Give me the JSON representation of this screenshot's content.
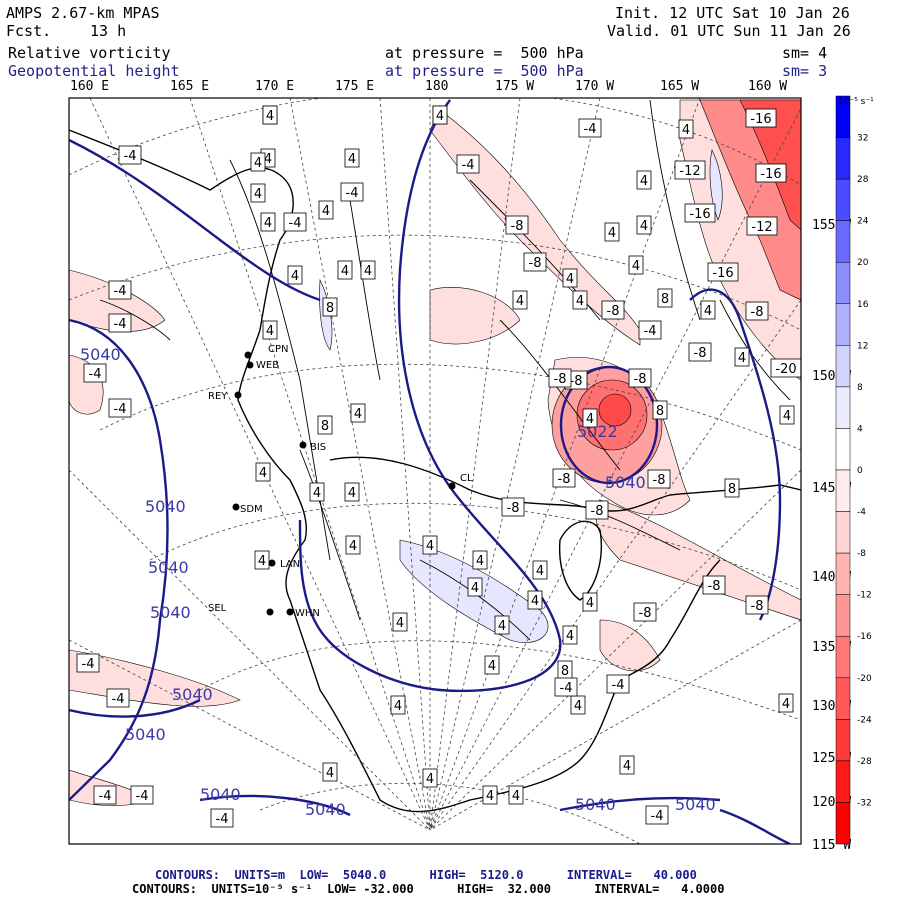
{
  "header": {
    "model": "AMPS 2.67-km MPAS",
    "fcst_label": "Fcst.",
    "fcst_value": "13 h",
    "init": "Init. 12 UTC Sat 10 Jan 26",
    "valid": "Valid. 01 UTC Sun 11 Jan 26",
    "field1": "Relative vorticity",
    "field2": "Geopotential height",
    "pressure1": "at pressure =  500 hPa",
    "pressure2": "at pressure =  500 hPa",
    "sm1": "sm= 4",
    "sm2": "sm= 3"
  },
  "longitudes": [
    "160 E",
    "165 E",
    "170 E",
    "175 E",
    "180",
    "175 W",
    "170 W",
    "165 W",
    "160 W"
  ],
  "latitudes": [
    "155",
    "150",
    "145",
    "140",
    "135",
    "130",
    "125",
    "120",
    "115"
  ],
  "colorbar": {
    "unit": "10⁻⁵ s⁻¹",
    "labels": [
      "32",
      "28",
      "24",
      "20",
      "16",
      "12",
      "8",
      "4",
      "0",
      "-4",
      "-8",
      "-12",
      "-16",
      "-20",
      "-24",
      "-28",
      "-32"
    ],
    "colors": [
      "#0000ff",
      "#2a2aff",
      "#4b4bff",
      "#6a6aff",
      "#8c8cff",
      "#b0b0ff",
      "#d2d2ff",
      "#ececff",
      "#ffffff",
      "#ffecec",
      "#ffd4d4",
      "#ffb4b4",
      "#ff9696",
      "#ff7777",
      "#ff5858",
      "#ff3a3a",
      "#ff1a1a",
      "#ff0000"
    ]
  },
  "stations": [
    "CPN",
    "WEB",
    "REY",
    "BIS",
    "CL",
    "SDM",
    "LAN",
    "WHN",
    "SEL"
  ],
  "contour_labels": {
    "height": [
      "5040",
      "5040",
      "5040",
      "5040",
      "5040",
      "5040",
      "5040",
      "5040",
      "5040",
      "5040",
      "5040",
      "5022"
    ],
    "vorticity": [
      "4",
      "4",
      "-4",
      "-4",
      "4",
      "4",
      "4",
      "4",
      "-4",
      "-4",
      "4",
      "4",
      "8",
      "4",
      "-4",
      "-4",
      "4",
      "4",
      "-4",
      "4",
      "8",
      "4",
      "4",
      "4",
      "4",
      "-4",
      "4",
      "4",
      "4",
      "4",
      "4",
      "4",
      "4",
      "4",
      "4",
      "4",
      "8",
      "4",
      "4",
      "4",
      "4",
      "4",
      "4",
      "-4",
      "-4",
      "-4",
      "-4",
      "-4",
      "-4",
      "4",
      "4",
      "8",
      "4",
      "4",
      "-8",
      "-4",
      "-8",
      "-8",
      "4",
      "4",
      "4",
      "-8",
      "4",
      "4",
      "4",
      "4",
      "4",
      "4",
      "4",
      "4",
      "-12",
      "-16",
      "-16",
      "-16",
      "-16",
      "-12",
      "-8",
      "-20",
      "-8",
      "-8",
      "-8",
      "-8",
      "-8",
      "-8",
      "-8",
      "-8",
      "-8",
      "-8",
      "-4",
      "-4",
      "-4",
      "8",
      "8",
      "4",
      "4",
      "4"
    ]
  },
  "footer": {
    "line1": "CONTOURS:  UNITS=m  LOW=  5040.0      HIGH=  5120.0      INTERVAL=   40.000",
    "line2": "CONTOURS:  UNITS=10⁻⁵ s⁻¹  LOW= -32.000      HIGH=  32.000      INTERVAL=   4.0000"
  }
}
